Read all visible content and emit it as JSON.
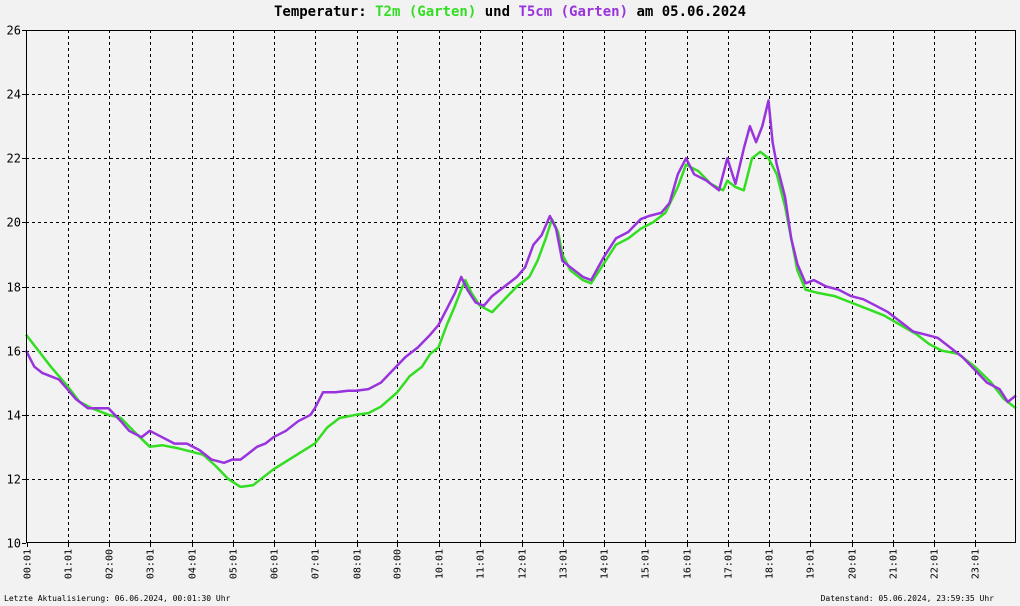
{
  "title": {
    "prefix": "Temperatur: ",
    "series1": "T2m (Garten)",
    "middle": " und ",
    "series2": "T5cm (Garten)",
    "suffix": " am 05.06.2024"
  },
  "footer": {
    "left": "Letzte Aktualisierung: 06.06.2024, 00:01:30 Uhr",
    "right": "Datenstand: 05.06.2024, 23:59:35 Uhr"
  },
  "colors": {
    "background": "#f2f2f2",
    "series1": "#33dd22",
    "series2": "#9933dd",
    "grid": "#000000"
  },
  "chart_data": {
    "type": "line",
    "title": "Temperatur: T2m (Garten) und T5cm (Garten) am 05.06.2024",
    "xlabel": "",
    "ylabel": "",
    "ylim": [
      10,
      26
    ],
    "yticks": [
      10,
      12,
      14,
      16,
      18,
      20,
      22,
      24,
      26
    ],
    "xlim": [
      0,
      24
    ],
    "grid": true,
    "x_unit": "hours",
    "xticks": [
      {
        "x": 0.0167,
        "label": "00:01"
      },
      {
        "x": 1.0167,
        "label": "01:01"
      },
      {
        "x": 2.0,
        "label": "02:00"
      },
      {
        "x": 3.0167,
        "label": "03:01"
      },
      {
        "x": 4.0167,
        "label": "04:01"
      },
      {
        "x": 5.0167,
        "label": "05:01"
      },
      {
        "x": 6.0167,
        "label": "06:01"
      },
      {
        "x": 7.0167,
        "label": "07:01"
      },
      {
        "x": 8.0167,
        "label": "08:01"
      },
      {
        "x": 9.0,
        "label": "09:00"
      },
      {
        "x": 10.0167,
        "label": "10:01"
      },
      {
        "x": 11.0167,
        "label": "11:01"
      },
      {
        "x": 12.0167,
        "label": "12:01"
      },
      {
        "x": 13.0167,
        "label": "13:01"
      },
      {
        "x": 14.0167,
        "label": "14:01"
      },
      {
        "x": 15.0167,
        "label": "15:01"
      },
      {
        "x": 16.0167,
        "label": "16:01"
      },
      {
        "x": 17.0167,
        "label": "17:01"
      },
      {
        "x": 18.0167,
        "label": "18:01"
      },
      {
        "x": 19.0167,
        "label": "19:01"
      },
      {
        "x": 20.0167,
        "label": "20:01"
      },
      {
        "x": 21.0167,
        "label": "21:01"
      },
      {
        "x": 22.0167,
        "label": "22:01"
      },
      {
        "x": 23.0167,
        "label": "23:01"
      }
    ],
    "series": [
      {
        "name": "T2m (Garten)",
        "color": "#33dd22",
        "points": [
          [
            0.0,
            16.5
          ],
          [
            0.3,
            16.0
          ],
          [
            0.6,
            15.5
          ],
          [
            1.0,
            14.9
          ],
          [
            1.3,
            14.4
          ],
          [
            1.6,
            14.2
          ],
          [
            2.0,
            14.0
          ],
          [
            2.3,
            13.9
          ],
          [
            2.6,
            13.5
          ],
          [
            3.0,
            13.0
          ],
          [
            3.3,
            13.05
          ],
          [
            3.7,
            12.95
          ],
          [
            4.0,
            12.85
          ],
          [
            4.3,
            12.75
          ],
          [
            4.6,
            12.4
          ],
          [
            4.9,
            12.0
          ],
          [
            5.2,
            11.75
          ],
          [
            5.5,
            11.8
          ],
          [
            6.0,
            12.3
          ],
          [
            6.5,
            12.7
          ],
          [
            7.0,
            13.1
          ],
          [
            7.3,
            13.6
          ],
          [
            7.6,
            13.9
          ],
          [
            8.0,
            14.0
          ],
          [
            8.3,
            14.05
          ],
          [
            8.6,
            14.25
          ],
          [
            9.0,
            14.7
          ],
          [
            9.3,
            15.2
          ],
          [
            9.6,
            15.5
          ],
          [
            9.8,
            15.9
          ],
          [
            10.0,
            16.1
          ],
          [
            10.2,
            16.8
          ],
          [
            10.4,
            17.4
          ],
          [
            10.55,
            17.9
          ],
          [
            10.65,
            18.2
          ],
          [
            10.8,
            17.8
          ],
          [
            11.0,
            17.4
          ],
          [
            11.3,
            17.2
          ],
          [
            11.6,
            17.6
          ],
          [
            11.9,
            18.0
          ],
          [
            12.2,
            18.3
          ],
          [
            12.4,
            18.8
          ],
          [
            12.6,
            19.5
          ],
          [
            12.75,
            20.1
          ],
          [
            12.9,
            19.7
          ],
          [
            13.0,
            19.0
          ],
          [
            13.2,
            18.5
          ],
          [
            13.5,
            18.2
          ],
          [
            13.7,
            18.1
          ],
          [
            14.0,
            18.7
          ],
          [
            14.3,
            19.3
          ],
          [
            14.6,
            19.5
          ],
          [
            14.9,
            19.8
          ],
          [
            15.2,
            20.0
          ],
          [
            15.5,
            20.3
          ],
          [
            15.8,
            21.1
          ],
          [
            16.0,
            21.8
          ],
          [
            16.3,
            21.6
          ],
          [
            16.6,
            21.2
          ],
          [
            16.9,
            21.0
          ],
          [
            17.0,
            21.3
          ],
          [
            17.2,
            21.1
          ],
          [
            17.4,
            21.0
          ],
          [
            17.6,
            22.0
          ],
          [
            17.8,
            22.2
          ],
          [
            18.0,
            22.0
          ],
          [
            18.2,
            21.5
          ],
          [
            18.4,
            20.5
          ],
          [
            18.55,
            19.5
          ],
          [
            18.7,
            18.5
          ],
          [
            18.9,
            17.9
          ],
          [
            19.2,
            17.8
          ],
          [
            19.6,
            17.7
          ],
          [
            20.0,
            17.5
          ],
          [
            20.4,
            17.3
          ],
          [
            20.8,
            17.1
          ],
          [
            21.2,
            16.8
          ],
          [
            21.6,
            16.5
          ],
          [
            21.9,
            16.2
          ],
          [
            22.2,
            16.0
          ],
          [
            22.6,
            15.9
          ],
          [
            23.0,
            15.5
          ],
          [
            23.4,
            15.0
          ],
          [
            23.7,
            14.5
          ],
          [
            24.0,
            14.2
          ]
        ]
      },
      {
        "name": "T5cm (Garten)",
        "color": "#9933dd",
        "points": [
          [
            0.0,
            16.0
          ],
          [
            0.2,
            15.5
          ],
          [
            0.4,
            15.3
          ],
          [
            0.6,
            15.2
          ],
          [
            0.8,
            15.1
          ],
          [
            1.0,
            14.8
          ],
          [
            1.2,
            14.5
          ],
          [
            1.5,
            14.2
          ],
          [
            1.8,
            14.2
          ],
          [
            2.0,
            14.2
          ],
          [
            2.3,
            13.8
          ],
          [
            2.5,
            13.5
          ],
          [
            2.8,
            13.3
          ],
          [
            3.0,
            13.5
          ],
          [
            3.3,
            13.3
          ],
          [
            3.6,
            13.1
          ],
          [
            3.9,
            13.1
          ],
          [
            4.2,
            12.9
          ],
          [
            4.5,
            12.6
          ],
          [
            4.8,
            12.5
          ],
          [
            5.0,
            12.6
          ],
          [
            5.2,
            12.6
          ],
          [
            5.4,
            12.8
          ],
          [
            5.6,
            13.0
          ],
          [
            5.8,
            13.1
          ],
          [
            6.0,
            13.3
          ],
          [
            6.3,
            13.5
          ],
          [
            6.6,
            13.8
          ],
          [
            6.9,
            14.0
          ],
          [
            7.0,
            14.2
          ],
          [
            7.2,
            14.7
          ],
          [
            7.5,
            14.7
          ],
          [
            7.8,
            14.75
          ],
          [
            8.0,
            14.75
          ],
          [
            8.3,
            14.8
          ],
          [
            8.6,
            15.0
          ],
          [
            8.9,
            15.4
          ],
          [
            9.2,
            15.8
          ],
          [
            9.5,
            16.1
          ],
          [
            9.8,
            16.5
          ],
          [
            10.0,
            16.8
          ],
          [
            10.2,
            17.3
          ],
          [
            10.4,
            17.8
          ],
          [
            10.55,
            18.3
          ],
          [
            10.7,
            17.9
          ],
          [
            10.9,
            17.5
          ],
          [
            11.1,
            17.4
          ],
          [
            11.3,
            17.7
          ],
          [
            11.6,
            18.0
          ],
          [
            11.9,
            18.3
          ],
          [
            12.1,
            18.6
          ],
          [
            12.3,
            19.3
          ],
          [
            12.5,
            19.6
          ],
          [
            12.7,
            20.2
          ],
          [
            12.85,
            19.8
          ],
          [
            13.0,
            18.8
          ],
          [
            13.2,
            18.6
          ],
          [
            13.5,
            18.3
          ],
          [
            13.7,
            18.2
          ],
          [
            14.0,
            18.9
          ],
          [
            14.3,
            19.5
          ],
          [
            14.6,
            19.7
          ],
          [
            14.9,
            20.1
          ],
          [
            15.1,
            20.2
          ],
          [
            15.4,
            20.3
          ],
          [
            15.6,
            20.6
          ],
          [
            15.8,
            21.5
          ],
          [
            16.0,
            22.0
          ],
          [
            16.2,
            21.5
          ],
          [
            16.5,
            21.3
          ],
          [
            16.8,
            21.0
          ],
          [
            17.0,
            22.0
          ],
          [
            17.2,
            21.2
          ],
          [
            17.4,
            22.3
          ],
          [
            17.55,
            23.0
          ],
          [
            17.7,
            22.5
          ],
          [
            17.85,
            23.0
          ],
          [
            18.0,
            23.8
          ],
          [
            18.1,
            22.5
          ],
          [
            18.2,
            21.8
          ],
          [
            18.4,
            20.8
          ],
          [
            18.55,
            19.5
          ],
          [
            18.7,
            18.7
          ],
          [
            18.9,
            18.1
          ],
          [
            19.1,
            18.2
          ],
          [
            19.4,
            18.0
          ],
          [
            19.7,
            17.9
          ],
          [
            20.0,
            17.7
          ],
          [
            20.3,
            17.6
          ],
          [
            20.6,
            17.4
          ],
          [
            20.9,
            17.2
          ],
          [
            21.2,
            16.9
          ],
          [
            21.5,
            16.6
          ],
          [
            21.8,
            16.5
          ],
          [
            22.1,
            16.4
          ],
          [
            22.4,
            16.1
          ],
          [
            22.7,
            15.8
          ],
          [
            23.0,
            15.4
          ],
          [
            23.3,
            15.0
          ],
          [
            23.6,
            14.8
          ],
          [
            23.8,
            14.4
          ],
          [
            24.0,
            14.6
          ]
        ]
      }
    ]
  }
}
